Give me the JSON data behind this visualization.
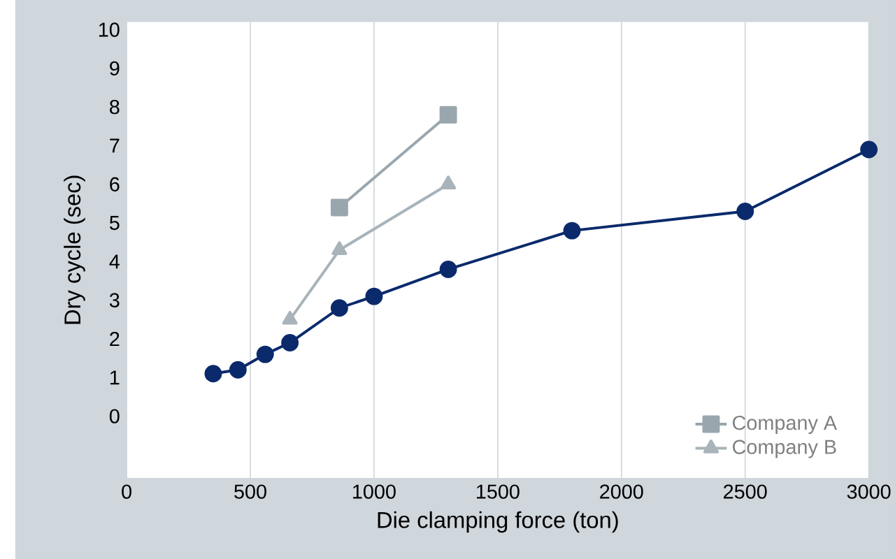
{
  "chart_data": {
    "type": "line",
    "xlabel": "Die clamping force (ton)",
    "ylabel": "Dry cycle (sec)",
    "xlim": [
      0,
      3000
    ],
    "xticks": [
      0,
      500,
      1000,
      1500,
      2000,
      2500,
      3000
    ],
    "ylim": [
      -1.6,
      10.2
    ],
    "yticks": [
      0,
      1,
      2,
      3,
      4,
      5,
      6,
      7,
      8,
      9,
      10
    ],
    "grid": "x",
    "legend": "bottom right",
    "series": [
      {
        "name": "Company A",
        "color": "#9aa6ae",
        "marker": "square",
        "x": [
          860,
          1300
        ],
        "values": [
          5.4,
          7.8
        ]
      },
      {
        "name": "Company B",
        "color": "#a8b3ba",
        "marker": "triangle",
        "x": [
          660,
          860,
          1300
        ],
        "values": [
          2.5,
          4.3,
          6.0
        ]
      },
      {
        "color": "#0a2a6b",
        "marker": "circle",
        "x": [
          350,
          450,
          560,
          660,
          860,
          1000,
          1300,
          1800,
          2500,
          3000
        ],
        "values": [
          1.1,
          1.2,
          1.6,
          1.9,
          2.8,
          3.1,
          3.8,
          4.8,
          5.3,
          6.9
        ]
      }
    ]
  }
}
